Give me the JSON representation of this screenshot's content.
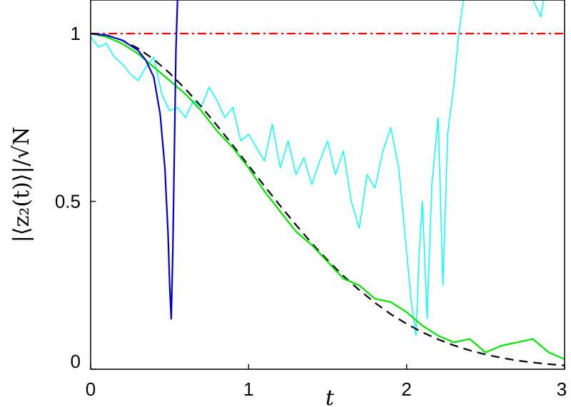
{
  "chart_data": {
    "type": "line",
    "xlabel": "t",
    "ylabel": "|⟨z₂(t)⟩|/√N",
    "xlim": [
      0,
      3
    ],
    "ylim": [
      0,
      1.1
    ],
    "xticks": [
      0,
      1,
      2,
      3
    ],
    "xtick_labels": [
      "0",
      "1",
      "2",
      "3"
    ],
    "yticks": [
      0,
      0.5,
      1
    ],
    "ytick_labels": [
      "0",
      "0.5",
      "1"
    ],
    "grid": false,
    "legend": "none",
    "series": [
      {
        "color": "#ff0000",
        "style": "dash-dot",
        "x": [
          0,
          3
        ],
        "y": [
          1,
          1
        ]
      },
      {
        "color": "#000000",
        "style": "dashed",
        "x": [
          0,
          0.1,
          0.2,
          0.3,
          0.4,
          0.5,
          0.6,
          0.7,
          0.8,
          0.9,
          1.0,
          1.1,
          1.2,
          1.3,
          1.4,
          1.5,
          1.6,
          1.7,
          1.8,
          1.9,
          2.0,
          2.1,
          2.2,
          2.3,
          2.4,
          2.5,
          2.6,
          2.7,
          2.8,
          2.9,
          3.0
        ],
        "y": [
          1.0,
          0.995,
          0.98,
          0.956,
          0.923,
          0.882,
          0.835,
          0.783,
          0.726,
          0.667,
          0.607,
          0.546,
          0.487,
          0.43,
          0.375,
          0.325,
          0.278,
          0.236,
          0.198,
          0.164,
          0.135,
          0.11,
          0.089,
          0.071,
          0.056,
          0.044,
          0.034,
          0.026,
          0.02,
          0.015,
          0.011
        ]
      },
      {
        "color": "#0000cc",
        "style": "solid",
        "x": [
          0,
          0.1,
          0.2,
          0.3,
          0.35,
          0.4,
          0.44,
          0.47,
          0.49,
          0.5,
          0.51,
          0.52,
          0.53,
          0.54,
          0.55
        ],
        "y": [
          1.0,
          0.995,
          0.98,
          0.95,
          0.92,
          0.87,
          0.76,
          0.6,
          0.4,
          0.25,
          0.15,
          0.35,
          0.65,
          0.95,
          1.1
        ]
      },
      {
        "color": "#00e600",
        "style": "solid",
        "x": [
          0,
          0.1,
          0.2,
          0.3,
          0.4,
          0.5,
          0.6,
          0.7,
          0.8,
          0.9,
          1.0,
          1.1,
          1.2,
          1.3,
          1.4,
          1.5,
          1.6,
          1.7,
          1.8,
          1.9,
          2.0,
          2.1,
          2.2,
          2.3,
          2.4,
          2.5,
          2.6,
          2.7,
          2.8,
          2.9,
          3.0
        ],
        "y": [
          1.0,
          0.99,
          0.97,
          0.94,
          0.9,
          0.86,
          0.82,
          0.77,
          0.71,
          0.66,
          0.6,
          0.53,
          0.47,
          0.41,
          0.37,
          0.32,
          0.27,
          0.25,
          0.21,
          0.2,
          0.17,
          0.13,
          0.1,
          0.08,
          0.09,
          0.05,
          0.07,
          0.08,
          0.09,
          0.05,
          0.03
        ]
      },
      {
        "color": "#00ffff",
        "style": "solid",
        "x": [
          0,
          0.05,
          0.1,
          0.15,
          0.2,
          0.25,
          0.3,
          0.35,
          0.4,
          0.45,
          0.5,
          0.55,
          0.6,
          0.65,
          0.7,
          0.75,
          0.8,
          0.85,
          0.9,
          0.95,
          1.0,
          1.05,
          1.1,
          1.15,
          1.2,
          1.25,
          1.3,
          1.35,
          1.4,
          1.45,
          1.5,
          1.55,
          1.6,
          1.65,
          1.7,
          1.75,
          1.8,
          1.85,
          1.9,
          1.95,
          2.0,
          2.03,
          2.06,
          2.08,
          2.1,
          2.13,
          2.16,
          2.2,
          2.23,
          2.26,
          2.3,
          2.33,
          2.36,
          2.4,
          2.43,
          2.46,
          2.5,
          2.55,
          2.6,
          2.65,
          2.7,
          2.75,
          2.8,
          2.85,
          2.9,
          2.95,
          3.0
        ],
        "y": [
          0.99,
          0.96,
          0.97,
          0.93,
          0.91,
          0.88,
          0.86,
          0.9,
          0.93,
          0.82,
          0.77,
          0.78,
          0.75,
          0.8,
          0.78,
          0.84,
          0.8,
          0.75,
          0.78,
          0.68,
          0.7,
          0.66,
          0.62,
          0.73,
          0.6,
          0.68,
          0.58,
          0.63,
          0.55,
          0.62,
          0.68,
          0.58,
          0.65,
          0.5,
          0.42,
          0.58,
          0.54,
          0.65,
          0.72,
          0.6,
          0.35,
          0.2,
          0.1,
          0.35,
          0.5,
          0.15,
          0.55,
          0.75,
          0.25,
          0.7,
          0.85,
          1.0,
          1.1,
          1.15,
          1.2,
          1.3,
          1.4,
          1.35,
          1.3,
          1.25,
          1.2,
          1.3,
          1.1,
          1.05,
          1.2,
          1.25,
          1.3
        ]
      }
    ]
  }
}
